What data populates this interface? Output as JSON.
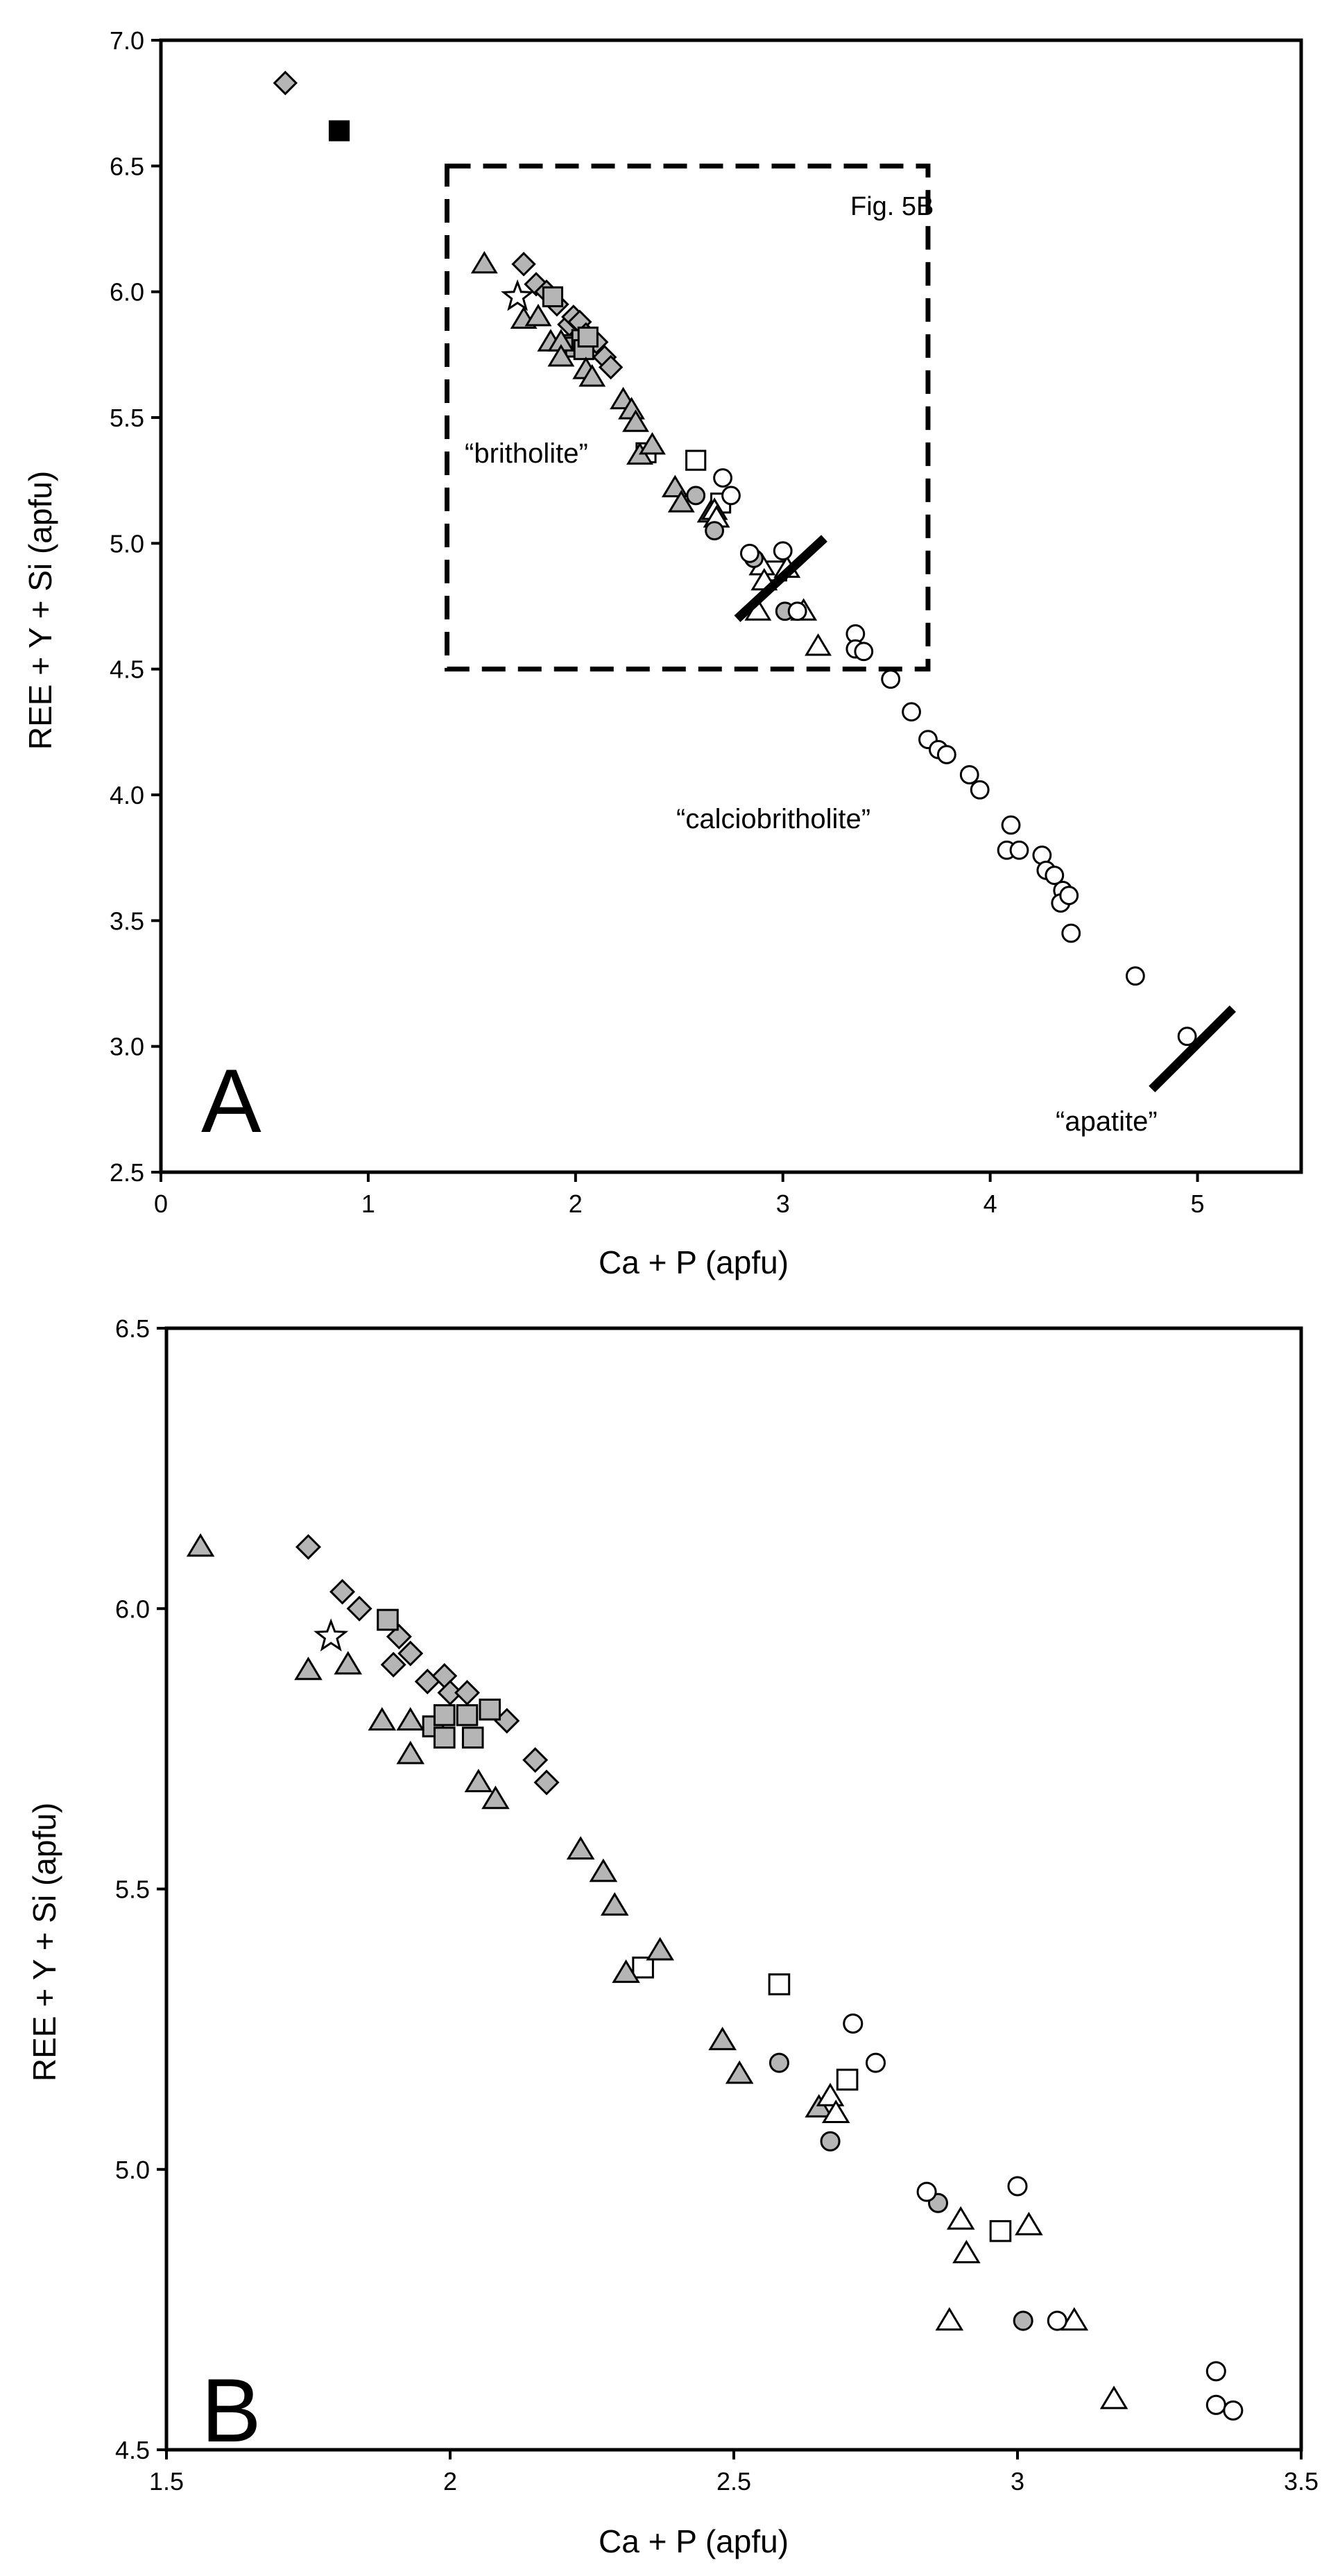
{
  "chart_data": [
    {
      "type": "scatter",
      "panel_letter": "A",
      "xlabel": "Ca + P (apfu)",
      "ylabel": "REE + Y + Si (apfu)",
      "xlim": [
        0,
        5.5
      ],
      "ylim": [
        2.5,
        7.0
      ],
      "xticks": [
        0,
        1,
        2,
        3,
        4,
        5
      ],
      "yticks": [
        2.5,
        3.0,
        3.5,
        4.0,
        4.5,
        5.0,
        5.5,
        6.0,
        6.5,
        7.0
      ],
      "xtick_labels": [
        "0",
        "1",
        "2",
        "3",
        "4",
        "5"
      ],
      "ytick_labels": [
        "2.5",
        "3.0",
        "3.5",
        "4.0",
        "4.5",
        "5.0",
        "5.5",
        "6.0",
        "6.5",
        "7.0"
      ],
      "grid": false,
      "annotations": [
        {
          "id": "fig5b",
          "text": "Fig. 5B",
          "x": 3.28,
          "y": 6.31
        },
        {
          "id": "britholite",
          "text": "“britholite”",
          "x": 1.83,
          "y": 5.33
        },
        {
          "id": "calciobritholite",
          "text": "“calciobritholite”",
          "x": 3.07,
          "y": 3.88
        },
        {
          "id": "apatite",
          "text": "“apatite”",
          "x": 4.55,
          "y": 2.62
        }
      ],
      "inset_box": {
        "label": "Fig. 5B",
        "x": [
          1.38,
          3.7
        ],
        "y": [
          4.5,
          6.5
        ]
      },
      "boundary_lines": [
        {
          "x": [
            2.78,
            3.2
          ],
          "y": [
            4.7,
            5.02
          ]
        },
        {
          "x": [
            4.78,
            5.17
          ],
          "y": [
            2.83,
            3.15
          ]
        }
      ],
      "series": [
        {
          "name": "grey-diamond",
          "marker": "diamond",
          "fill": "#b5b5b5",
          "stroke": "#000000",
          "points": [
            [
              0.6,
              6.83
            ],
            [
              1.75,
              6.11
            ],
            [
              1.81,
              6.03
            ],
            [
              1.86,
              6.0
            ],
            [
              1.91,
              5.95
            ],
            [
              1.97,
              5.87
            ],
            [
              1.99,
              5.9
            ],
            [
              2.02,
              5.88
            ],
            [
              2.05,
              5.83
            ],
            [
              2.1,
              5.8
            ],
            [
              2.14,
              5.74
            ],
            [
              2.17,
              5.7
            ]
          ]
        },
        {
          "name": "black-square",
          "marker": "square",
          "fill": "#000000",
          "stroke": "#000000",
          "points": [
            [
              0.86,
              6.64
            ]
          ]
        },
        {
          "name": "grey-square",
          "marker": "square",
          "fill": "#b5b5b5",
          "stroke": "#000000",
          "points": [
            [
              1.89,
              5.98
            ],
            [
              1.98,
              5.79
            ],
            [
              2.0,
              5.78
            ],
            [
              2.03,
              5.81
            ],
            [
              2.04,
              5.77
            ],
            [
              2.06,
              5.82
            ]
          ]
        },
        {
          "name": "open-square",
          "marker": "square",
          "fill": "#ffffff",
          "stroke": "#000000",
          "points": [
            [
              2.34,
              5.36
            ],
            [
              2.58,
              5.33
            ],
            [
              2.7,
              5.16
            ],
            [
              2.97,
              4.89
            ]
          ]
        },
        {
          "name": "grey-triangle",
          "marker": "triangle",
          "fill": "#b5b5b5",
          "stroke": "#000000",
          "points": [
            [
              1.56,
              6.11
            ],
            [
              1.75,
              5.89
            ],
            [
              1.82,
              5.9
            ],
            [
              1.88,
              5.8
            ],
            [
              1.93,
              5.8
            ],
            [
              1.93,
              5.74
            ],
            [
              2.05,
              5.69
            ],
            [
              2.08,
              5.66
            ],
            [
              2.23,
              5.57
            ],
            [
              2.27,
              5.53
            ],
            [
              2.29,
              5.48
            ],
            [
              2.31,
              5.35
            ],
            [
              2.37,
              5.39
            ],
            [
              2.48,
              5.22
            ],
            [
              2.51,
              5.16
            ],
            [
              2.65,
              5.12
            ]
          ]
        },
        {
          "name": "open-triangle",
          "marker": "triangle",
          "fill": "#ffffff",
          "stroke": "#000000",
          "points": [
            [
              2.67,
              5.13
            ],
            [
              2.68,
              5.1
            ],
            [
              2.9,
              4.91
            ],
            [
              2.91,
              4.85
            ],
            [
              3.02,
              4.9
            ],
            [
              2.88,
              4.73
            ],
            [
              3.1,
              4.73
            ],
            [
              3.17,
              4.59
            ]
          ]
        },
        {
          "name": "grey-circle",
          "marker": "circle",
          "fill": "#b5b5b5",
          "stroke": "#000000",
          "points": [
            [
              2.58,
              5.19
            ],
            [
              2.67,
              5.05
            ],
            [
              2.86,
              4.94
            ],
            [
              3.01,
              4.73
            ]
          ]
        },
        {
          "name": "open-circle",
          "marker": "circle",
          "fill": "#ffffff",
          "stroke": "#000000",
          "points": [
            [
              2.71,
              5.26
            ],
            [
              2.75,
              5.19
            ],
            [
              2.84,
              4.96
            ],
            [
              3.0,
              4.97
            ],
            [
              3.07,
              4.73
            ],
            [
              3.35,
              4.64
            ],
            [
              3.35,
              4.58
            ],
            [
              3.39,
              4.57
            ],
            [
              3.52,
              4.46
            ],
            [
              3.62,
              4.33
            ],
            [
              3.7,
              4.22
            ],
            [
              3.75,
              4.18
            ],
            [
              3.79,
              4.16
            ],
            [
              3.9,
              4.08
            ],
            [
              3.95,
              4.02
            ],
            [
              4.1,
              3.88
            ],
            [
              4.08,
              3.78
            ],
            [
              4.14,
              3.78
            ],
            [
              4.25,
              3.76
            ],
            [
              4.27,
              3.7
            ],
            [
              4.31,
              3.68
            ],
            [
              4.35,
              3.62
            ],
            [
              4.34,
              3.57
            ],
            [
              4.38,
              3.6
            ],
            [
              4.39,
              3.45
            ],
            [
              4.7,
              3.28
            ],
            [
              4.95,
              3.04
            ]
          ]
        },
        {
          "name": "open-star",
          "marker": "star",
          "fill": "#ffffff",
          "stroke": "#000000",
          "points": [
            [
              1.72,
              5.98
            ]
          ]
        }
      ]
    },
    {
      "type": "scatter",
      "panel_letter": "B",
      "xlabel": "Ca + P (apfu)",
      "ylabel": "REE + Y + Si (apfu)",
      "xlim": [
        1.5,
        3.5
      ],
      "ylim": [
        4.5,
        6.5
      ],
      "xticks": [
        1.5,
        2,
        2.5,
        3,
        3.5
      ],
      "yticks": [
        4.5,
        5.0,
        5.5,
        6.0,
        6.5
      ],
      "xtick_labels": [
        "1.5",
        "2",
        "2.5",
        "3",
        "3.5"
      ],
      "ytick_labels": [
        "4.5",
        "5.0",
        "5.5",
        "6.0",
        "6.5"
      ],
      "grid": false,
      "series": [
        {
          "name": "grey-diamond",
          "marker": "diamond",
          "fill": "#b5b5b5",
          "stroke": "#000000",
          "points": [
            [
              1.75,
              6.11
            ],
            [
              1.81,
              6.03
            ],
            [
              1.84,
              6.0
            ],
            [
              1.91,
              5.95
            ],
            [
              1.93,
              5.92
            ],
            [
              1.9,
              5.9
            ],
            [
              1.96,
              5.87
            ],
            [
              1.99,
              5.88
            ],
            [
              2.0,
              5.85
            ],
            [
              2.03,
              5.85
            ],
            [
              2.1,
              5.8
            ],
            [
              2.15,
              5.73
            ],
            [
              2.17,
              5.69
            ]
          ]
        },
        {
          "name": "grey-square",
          "marker": "square",
          "fill": "#b5b5b5",
          "stroke": "#000000",
          "points": [
            [
              1.89,
              5.98
            ],
            [
              1.97,
              5.79
            ],
            [
              1.99,
              5.81
            ],
            [
              1.99,
              5.77
            ],
            [
              2.03,
              5.81
            ],
            [
              2.04,
              5.77
            ],
            [
              2.07,
              5.82
            ]
          ]
        },
        {
          "name": "open-square",
          "marker": "square",
          "fill": "#ffffff",
          "stroke": "#000000",
          "points": [
            [
              2.34,
              5.36
            ],
            [
              2.58,
              5.33
            ],
            [
              2.7,
              5.16
            ],
            [
              2.97,
              4.89
            ]
          ]
        },
        {
          "name": "grey-triangle",
          "marker": "triangle",
          "fill": "#b5b5b5",
          "stroke": "#000000",
          "points": [
            [
              1.56,
              6.11
            ],
            [
              1.75,
              5.89
            ],
            [
              1.82,
              5.9
            ],
            [
              1.88,
              5.8
            ],
            [
              1.93,
              5.8
            ],
            [
              1.93,
              5.74
            ],
            [
              2.05,
              5.69
            ],
            [
              2.08,
              5.66
            ],
            [
              2.23,
              5.57
            ],
            [
              2.27,
              5.53
            ],
            [
              2.29,
              5.47
            ],
            [
              2.31,
              5.35
            ],
            [
              2.37,
              5.39
            ],
            [
              2.48,
              5.23
            ],
            [
              2.51,
              5.17
            ],
            [
              2.65,
              5.11
            ]
          ]
        },
        {
          "name": "open-triangle",
          "marker": "triangle",
          "fill": "#ffffff",
          "stroke": "#000000",
          "points": [
            [
              2.67,
              5.13
            ],
            [
              2.68,
              5.1
            ],
            [
              2.9,
              4.91
            ],
            [
              2.91,
              4.85
            ],
            [
              3.02,
              4.9
            ],
            [
              2.88,
              4.73
            ],
            [
              3.1,
              4.73
            ],
            [
              3.17,
              4.59
            ]
          ]
        },
        {
          "name": "grey-circle",
          "marker": "circle",
          "fill": "#b5b5b5",
          "stroke": "#000000",
          "points": [
            [
              2.58,
              5.19
            ],
            [
              2.67,
              5.05
            ],
            [
              2.86,
              4.94
            ],
            [
              3.01,
              4.73
            ]
          ]
        },
        {
          "name": "open-circle",
          "marker": "circle",
          "fill": "#ffffff",
          "stroke": "#000000",
          "points": [
            [
              2.71,
              5.26
            ],
            [
              2.75,
              5.19
            ],
            [
              2.84,
              4.96
            ],
            [
              3.0,
              4.97
            ],
            [
              3.07,
              4.73
            ],
            [
              3.35,
              4.64
            ],
            [
              3.35,
              4.58
            ],
            [
              3.38,
              4.57
            ]
          ]
        },
        {
          "name": "open-star",
          "marker": "star",
          "fill": "#ffffff",
          "stroke": "#000000",
          "points": [
            [
              1.79,
              5.95
            ]
          ]
        }
      ]
    }
  ]
}
